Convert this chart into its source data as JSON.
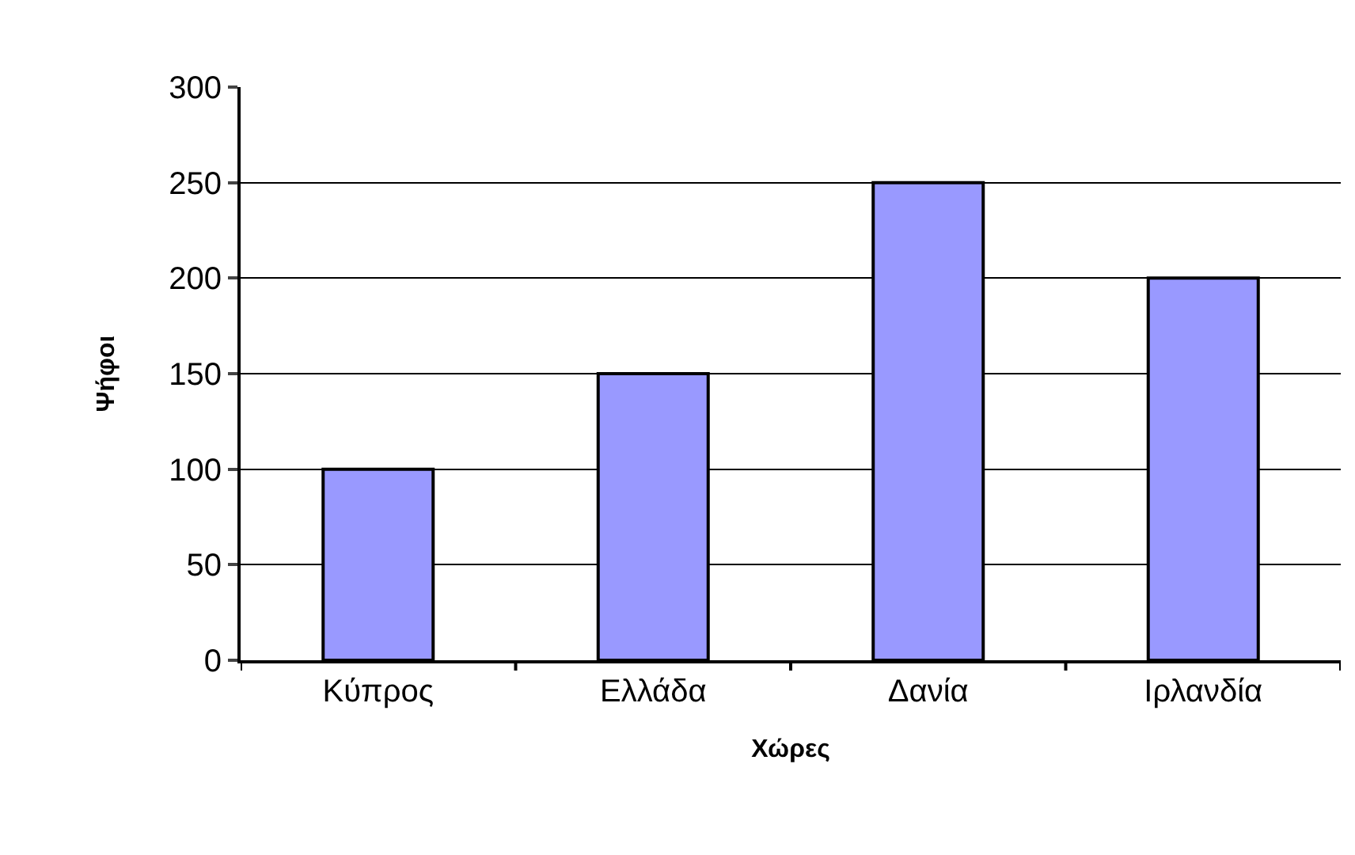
{
  "chart_data": {
    "type": "bar",
    "xlabel": "Χώρες",
    "ylabel": "Ψήφοι",
    "categories": [
      "Κύπρος",
      "Ελλάδα",
      "Δανία",
      "Ιρλανδία"
    ],
    "values": [
      100,
      150,
      250,
      200
    ],
    "color": "#9999ff",
    "ylim": [
      0,
      300
    ],
    "yticks": [
      0,
      50,
      100,
      150,
      200,
      250,
      300
    ],
    "grid": "y",
    "legend": false
  }
}
